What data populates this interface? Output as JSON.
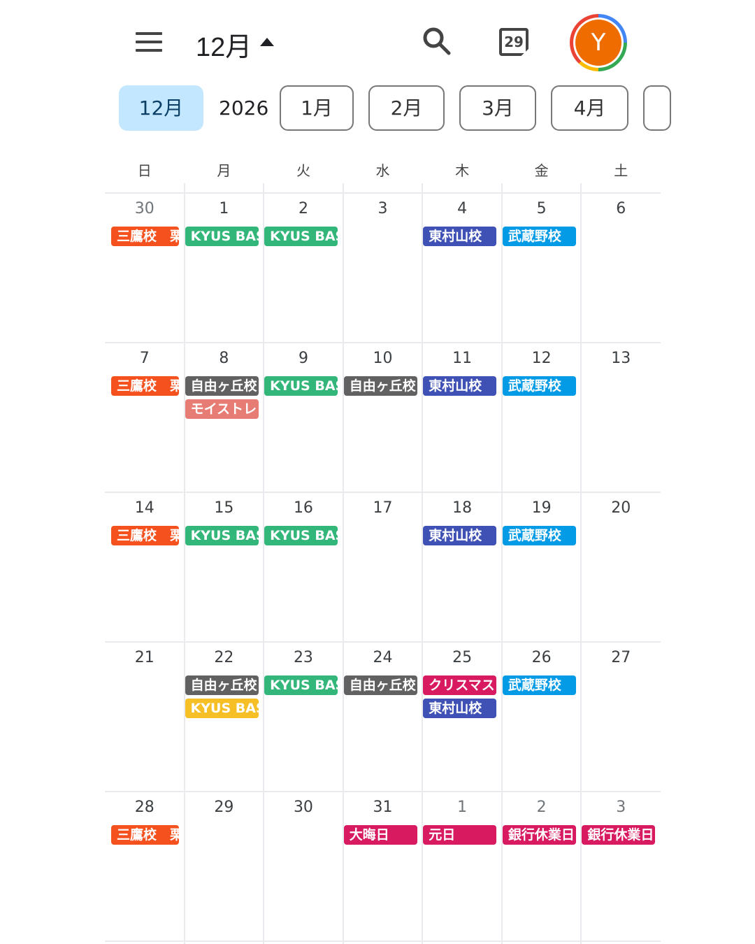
{
  "header": {
    "title": "12月",
    "today_day": "29",
    "avatar_letter": "Y"
  },
  "months": {
    "selected": "12月",
    "year": "2026",
    "items": [
      "1月",
      "2月",
      "3月",
      "4月",
      ""
    ]
  },
  "weekdays": [
    "日",
    "月",
    "火",
    "水",
    "木",
    "金",
    "土"
  ],
  "colors": {
    "orange": "#f4511e",
    "green": "#33b679",
    "gray": "#616161",
    "salmon": "#e67c73",
    "indigo": "#3f51b5",
    "blue": "#039be5",
    "crimson": "#d81b60",
    "yellow": "#f6bf26"
  },
  "weeks": [
    [
      {
        "d": "30",
        "o": true,
        "ev": [
          [
            "三鷹校　栗",
            "orange"
          ]
        ]
      },
      {
        "d": "1",
        "ev": [
          [
            "KYUS BASE",
            "green"
          ]
        ]
      },
      {
        "d": "2",
        "ev": [
          [
            "KYUS BASE",
            "green"
          ]
        ]
      },
      {
        "d": "3",
        "ev": []
      },
      {
        "d": "4",
        "ev": [
          [
            "東村山校",
            "indigo"
          ]
        ]
      },
      {
        "d": "5",
        "ev": [
          [
            "武蔵野校",
            "blue"
          ]
        ]
      },
      {
        "d": "6",
        "ev": []
      }
    ],
    [
      {
        "d": "7",
        "ev": [
          [
            "三鷹校　栗",
            "orange"
          ]
        ]
      },
      {
        "d": "8",
        "ev": [
          [
            "自由ヶ丘校",
            "gray"
          ],
          [
            "モイストレ",
            "salmon"
          ]
        ]
      },
      {
        "d": "9",
        "ev": [
          [
            "KYUS BASE",
            "green"
          ]
        ]
      },
      {
        "d": "10",
        "ev": [
          [
            "自由ヶ丘校",
            "gray"
          ]
        ]
      },
      {
        "d": "11",
        "ev": [
          [
            "東村山校",
            "indigo"
          ]
        ]
      },
      {
        "d": "12",
        "ev": [
          [
            "武蔵野校",
            "blue"
          ]
        ]
      },
      {
        "d": "13",
        "ev": []
      }
    ],
    [
      {
        "d": "14",
        "ev": [
          [
            "三鷹校　栗",
            "orange"
          ]
        ]
      },
      {
        "d": "15",
        "ev": [
          [
            "KYUS BASE",
            "green"
          ]
        ]
      },
      {
        "d": "16",
        "ev": [
          [
            "KYUS BASE",
            "green"
          ]
        ]
      },
      {
        "d": "17",
        "ev": []
      },
      {
        "d": "18",
        "ev": [
          [
            "東村山校",
            "indigo"
          ]
        ]
      },
      {
        "d": "19",
        "ev": [
          [
            "武蔵野校",
            "blue"
          ]
        ]
      },
      {
        "d": "20",
        "ev": []
      }
    ],
    [
      {
        "d": "21",
        "ev": []
      },
      {
        "d": "22",
        "ev": [
          [
            "自由ヶ丘校",
            "gray"
          ],
          [
            "KYUS BASE",
            "yellow"
          ]
        ]
      },
      {
        "d": "23",
        "ev": [
          [
            "KYUS BASE",
            "green"
          ]
        ]
      },
      {
        "d": "24",
        "ev": [
          [
            "自由ヶ丘校",
            "gray"
          ]
        ]
      },
      {
        "d": "25",
        "ev": [
          [
            "クリスマス",
            "crimson"
          ],
          [
            "東村山校",
            "indigo"
          ]
        ]
      },
      {
        "d": "26",
        "ev": [
          [
            "武蔵野校",
            "blue"
          ]
        ]
      },
      {
        "d": "27",
        "ev": []
      }
    ],
    [
      {
        "d": "28",
        "ev": [
          [
            "三鷹校　栗",
            "orange"
          ]
        ]
      },
      {
        "d": "29",
        "ev": []
      },
      {
        "d": "30",
        "ev": []
      },
      {
        "d": "31",
        "ev": [
          [
            "大晦日",
            "crimson"
          ]
        ]
      },
      {
        "d": "1",
        "o": true,
        "ev": [
          [
            "元日",
            "crimson"
          ]
        ]
      },
      {
        "d": "2",
        "o": true,
        "ev": [
          [
            "銀行休業日",
            "crimson"
          ]
        ]
      },
      {
        "d": "3",
        "o": true,
        "ev": [
          [
            "銀行休業日",
            "crimson"
          ]
        ]
      }
    ]
  ]
}
